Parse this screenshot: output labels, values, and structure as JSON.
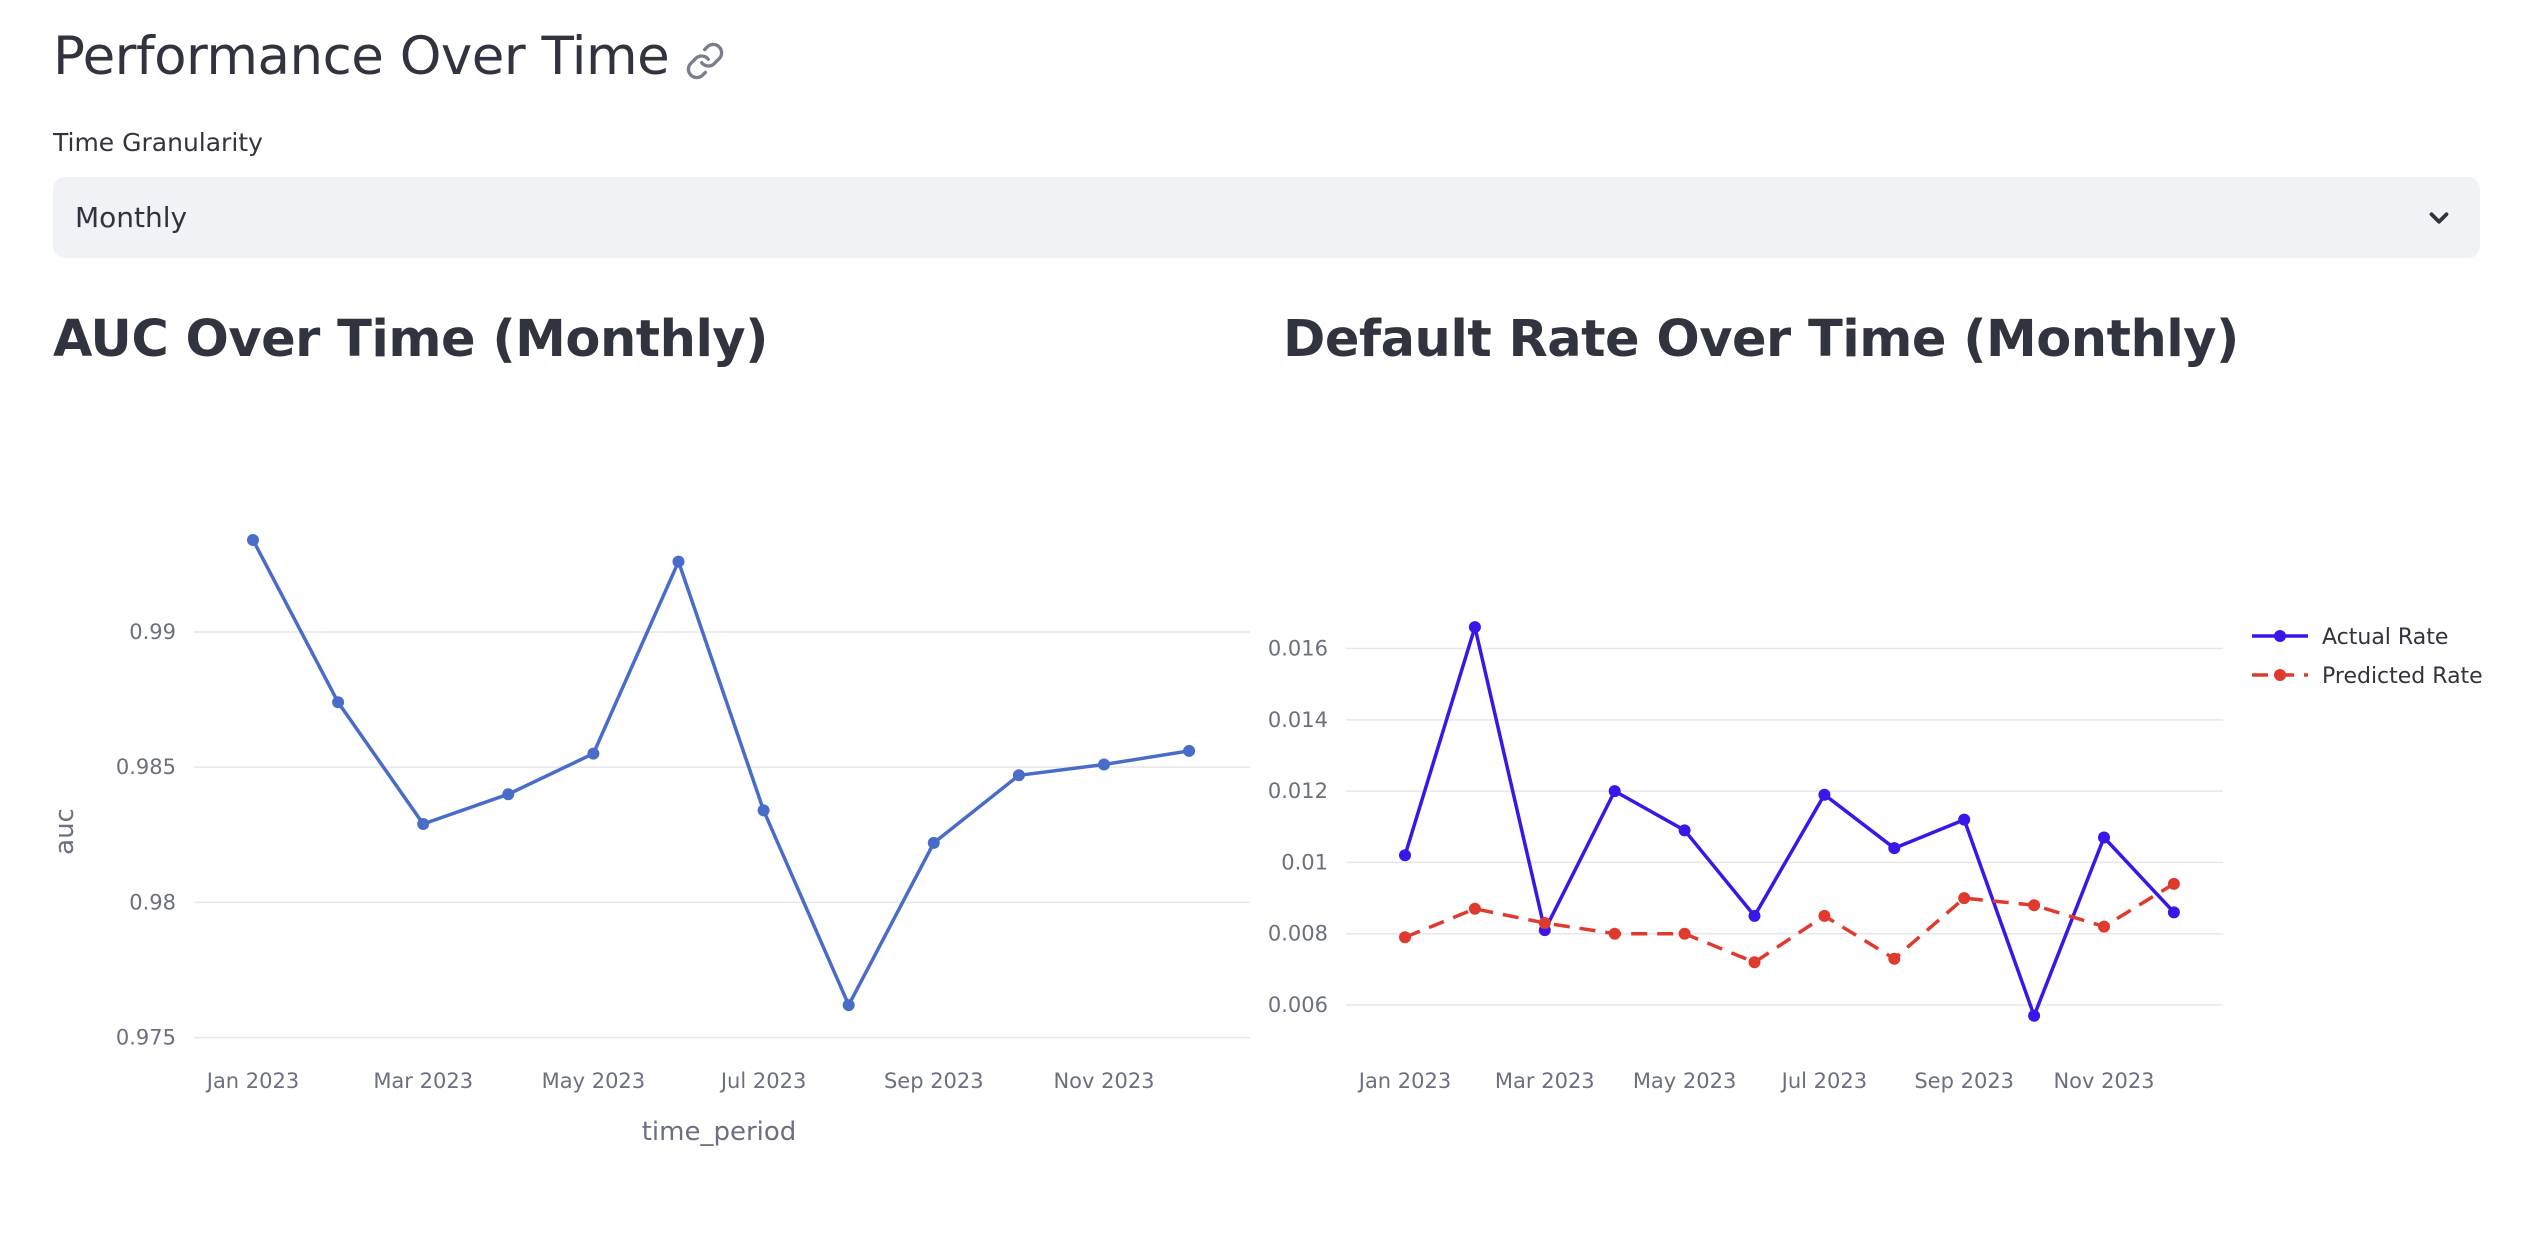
{
  "header": {
    "title": "Performance Over Time"
  },
  "icons": {
    "link": "link-icon",
    "dropdown": "chevron-down-icon"
  },
  "granularity": {
    "label": "Time Granularity",
    "selected": "Monthly"
  },
  "colors": {
    "auc_line": "#4a6cc9",
    "actual_rate": "#3a17e8",
    "predicted_rate": "#e03a2e",
    "select_bg": "#f0f2f6"
  },
  "chart_data": [
    {
      "id": "auc",
      "type": "line",
      "title": "AUC Over Time (Monthly)",
      "xlabel": "time_period",
      "ylabel": "auc",
      "x": [
        "2023-01",
        "2023-02",
        "2023-03",
        "2023-04",
        "2023-05",
        "2023-06",
        "2023-07",
        "2023-08",
        "2023-09",
        "2023-10",
        "2023-11",
        "2023-12"
      ],
      "x_tick_labels": [
        "Jan 2023",
        "Mar 2023",
        "May 2023",
        "Jul 2023",
        "Sep 2023",
        "Nov 2023"
      ],
      "x_tick_positions": [
        "2023-01",
        "2023-03",
        "2023-05",
        "2023-07",
        "2023-09",
        "2023-11"
      ],
      "y_ticks": [
        0.975,
        0.98,
        0.985,
        0.99
      ],
      "y_tick_labels": [
        "0.975",
        "0.98",
        "0.985",
        "0.99"
      ],
      "ylim": [
        0.9748,
        0.9934
      ],
      "grid": true,
      "series": [
        {
          "values": [
            0.9934,
            0.9874,
            0.9829,
            0.984,
            0.9855,
            0.9926,
            0.9834,
            0.9762,
            0.9822,
            0.9847,
            0.9851,
            0.9856
          ]
        }
      ]
    },
    {
      "id": "default_rate",
      "type": "line",
      "title": "Default Rate Over Time (Monthly)",
      "xlabel": "",
      "ylabel": "",
      "x": [
        "2023-01",
        "2023-02",
        "2023-03",
        "2023-04",
        "2023-05",
        "2023-06",
        "2023-07",
        "2023-08",
        "2023-09",
        "2023-10",
        "2023-11",
        "2023-12"
      ],
      "x_tick_labels": [
        "Jan 2023",
        "Mar 2023",
        "May 2023",
        "Jul 2023",
        "Sep 2023",
        "Nov 2023"
      ],
      "x_tick_positions": [
        "2023-01",
        "2023-03",
        "2023-05",
        "2023-07",
        "2023-09",
        "2023-11"
      ],
      "y_ticks": [
        0.006,
        0.008,
        0.01,
        0.012,
        0.014,
        0.016
      ],
      "y_tick_labels": [
        "0.006",
        "0.008",
        "0.01",
        "0.012",
        "0.014",
        "0.016"
      ],
      "ylim": [
        0.0053,
        0.0168
      ],
      "grid": true,
      "legend_position": "top-right",
      "series": [
        {
          "name": "Actual Rate",
          "style": "solid",
          "values": [
            0.0102,
            0.0166,
            0.0081,
            0.012,
            0.0109,
            0.0085,
            0.0119,
            0.0104,
            0.0112,
            0.0057,
            0.0107,
            0.0086
          ]
        },
        {
          "name": "Predicted Rate",
          "style": "dashed",
          "values": [
            0.0079,
            0.0087,
            0.0083,
            0.008,
            0.008,
            0.0072,
            0.0085,
            0.0073,
            0.009,
            0.0088,
            0.0082,
            0.0094
          ]
        }
      ]
    }
  ]
}
